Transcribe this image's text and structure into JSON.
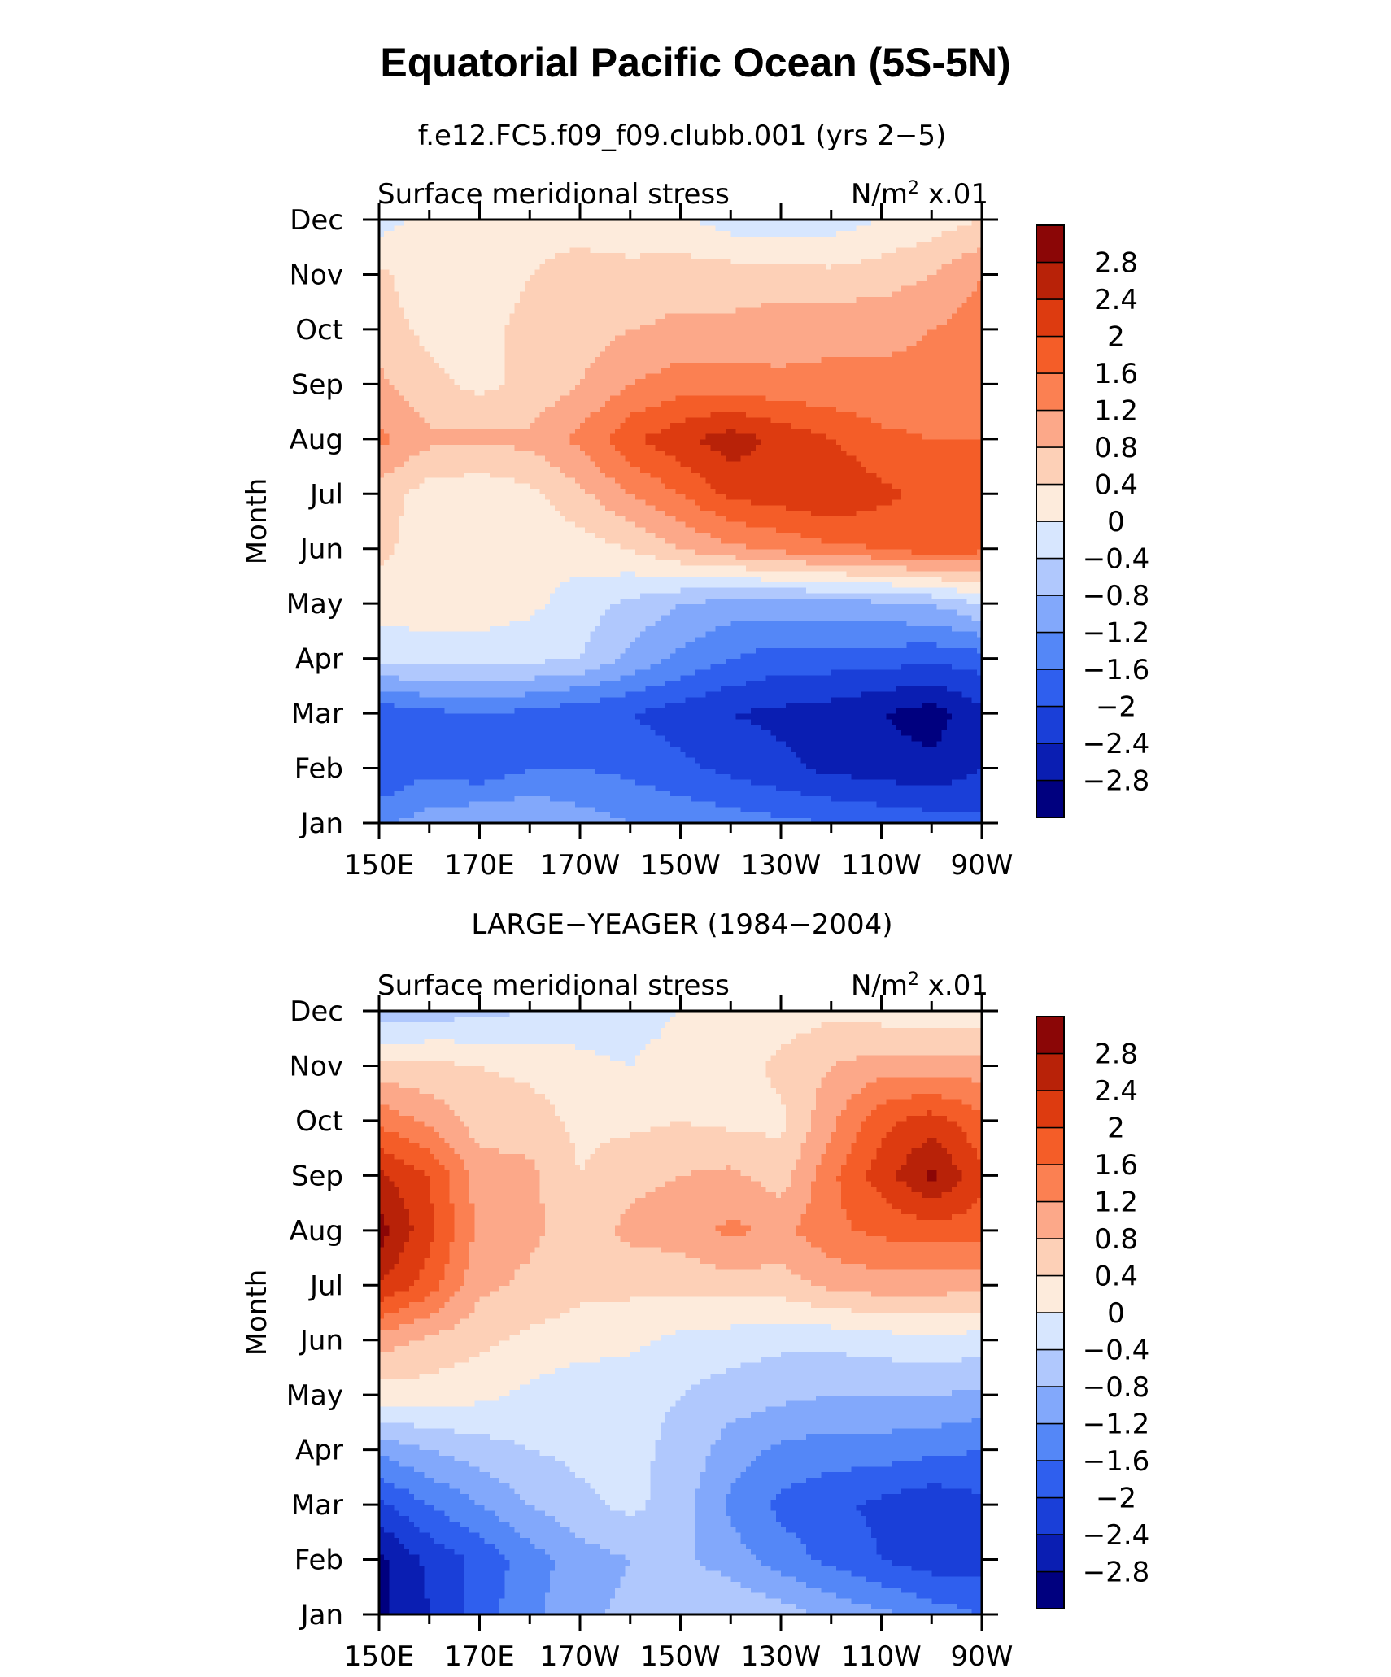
{
  "figure_title": "Equatorial Pacific Ocean (5S-5N)",
  "units_text": "N/m",
  "units_sup": "2",
  "units_scale": "x.01",
  "colors": [
    "#00007f",
    "#0a1eb2",
    "#1a3fd8",
    "#2f5fee",
    "#5487f7",
    "#82a8fb",
    "#b0c8fd",
    "#d7e6fe",
    "#fdebdc",
    "#fdd0b7",
    "#fca889",
    "#fb8052",
    "#f45d28",
    "#dd3b10",
    "#b82208",
    "#8b0606"
  ],
  "chart_data": [
    {
      "type": "heatmap",
      "title": "f.e12.FC5.f09_f09.clubb.001 (yrs 2−5)",
      "variable": "Surface meridional stress",
      "units": "N/m² x.01",
      "xlabel": "",
      "ylabel": "Month",
      "x": [
        150,
        160,
        170,
        180,
        190,
        200,
        210,
        220,
        230,
        240,
        250,
        260,
        270
      ],
      "xtick_values": [
        150,
        170,
        190,
        210,
        230,
        250,
        270
      ],
      "xtick_labels": [
        "150E",
        "170E",
        "170W",
        "150W",
        "130W",
        "110W",
        "90W"
      ],
      "y": [
        1,
        2,
        3,
        4,
        5,
        6,
        7,
        8,
        9,
        10,
        11,
        12
      ],
      "ytick_labels": [
        "Jan",
        "Feb",
        "Mar",
        "Apr",
        "May",
        "Jun",
        "Jul",
        "Aug",
        "Sep",
        "Oct",
        "Nov",
        "Dec"
      ],
      "levels": [
        -2.8,
        -2.4,
        -2,
        -1.6,
        -1.2,
        -0.8,
        -0.4,
        0,
        0.4,
        0.8,
        1.2,
        1.6,
        2,
        2.4,
        2.8
      ],
      "colorbar_labels": [
        "2.8",
        "2.4",
        "2",
        "1.6",
        "1.2",
        "0.8",
        "0.4",
        "0",
        "−0.4",
        "−0.8",
        "−1.2",
        "−1.6",
        "−2",
        "−2.4",
        "−2.8"
      ],
      "z": [
        [
          -1.3,
          -1.0,
          -0.8,
          -0.8,
          -1.0,
          -1.2,
          -1.3,
          -1.4,
          -1.5,
          -1.6,
          -1.7,
          -1.8,
          -1.9
        ],
        [
          -2.0,
          -1.7,
          -1.9,
          -1.6,
          -1.6,
          -1.7,
          -1.9,
          -2.1,
          -2.3,
          -2.5,
          -2.6,
          -2.7,
          -2.4
        ],
        [
          -1.9,
          -1.7,
          -1.6,
          -1.7,
          -1.9,
          -2.0,
          -2.2,
          -2.4,
          -2.5,
          -2.6,
          -2.8,
          -3.0,
          -2.5
        ],
        [
          -0.3,
          -0.2,
          -0.2,
          -0.3,
          -0.4,
          -0.9,
          -1.3,
          -1.6,
          -1.8,
          -1.8,
          -1.8,
          -1.9,
          -1.8
        ],
        [
          0.2,
          0.2,
          0.2,
          0.1,
          -0.2,
          -0.5,
          -0.8,
          -1.0,
          -1.0,
          -1.0,
          -0.9,
          -0.8,
          -0.4
        ],
        [
          0.5,
          0.2,
          0.1,
          0.1,
          0.2,
          0.4,
          0.8,
          1.1,
          1.3,
          1.5,
          1.6,
          1.8,
          1.7
        ],
        [
          0.6,
          0.2,
          0.1,
          0.3,
          0.7,
          1.2,
          1.6,
          2.1,
          2.2,
          2.4,
          2.1,
          1.9,
          1.7
        ],
        [
          1.3,
          0.9,
          0.9,
          0.9,
          1.3,
          1.9,
          2.3,
          2.6,
          2.3,
          2.0,
          1.7,
          1.6,
          1.6
        ],
        [
          0.9,
          0.5,
          0.3,
          0.5,
          0.8,
          1.2,
          1.4,
          1.4,
          1.3,
          1.3,
          1.3,
          1.3,
          1.5
        ],
        [
          0.6,
          0.3,
          0.3,
          0.5,
          0.6,
          0.8,
          0.9,
          0.9,
          1.0,
          1.1,
          1.1,
          1.2,
          1.4
        ],
        [
          0.5,
          0.1,
          0.2,
          0.4,
          0.5,
          0.5,
          0.6,
          0.6,
          0.6,
          0.5,
          0.6,
          0.8,
          1.2
        ],
        [
          -0.2,
          0.2,
          0.3,
          0.3,
          0.3,
          0.2,
          0.1,
          -0.2,
          -0.2,
          -0.2,
          0.0,
          0.2,
          0.4
        ]
      ]
    },
    {
      "type": "heatmap",
      "title": "LARGE−YEAGER (1984−2004)",
      "variable": "Surface meridional stress",
      "units": "N/m² x.01",
      "xlabel": "",
      "ylabel": "Month",
      "x": [
        150,
        160,
        170,
        180,
        190,
        200,
        210,
        220,
        230,
        240,
        250,
        260,
        270
      ],
      "xtick_values": [
        150,
        170,
        190,
        210,
        230,
        250,
        270
      ],
      "xtick_labels": [
        "150E",
        "170E",
        "170W",
        "150W",
        "130W",
        "110W",
        "90W"
      ],
      "y": [
        1,
        2,
        3,
        4,
        5,
        6,
        7,
        8,
        9,
        10,
        11,
        12
      ],
      "ytick_labels": [
        "Jan",
        "Feb",
        "Mar",
        "Apr",
        "May",
        "Jun",
        "Jul",
        "Aug",
        "Sep",
        "Oct",
        "Nov",
        "Dec"
      ],
      "levels": [
        -2.8,
        -2.4,
        -2,
        -1.6,
        -1.2,
        -0.8,
        -0.4,
        0,
        0.4,
        0.8,
        1.2,
        1.6,
        2,
        2.4,
        2.8
      ],
      "colorbar_labels": [
        "2.8",
        "2.4",
        "2",
        "1.6",
        "1.2",
        "0.8",
        "0.4",
        "0",
        "−0.4",
        "−0.8",
        "−1.2",
        "−1.6",
        "−2",
        "−2.4",
        "−2.8"
      ],
      "z": [
        [
          -2.9,
          -2.4,
          -1.8,
          -1.3,
          -0.9,
          -0.7,
          -0.5,
          -0.4,
          -0.6,
          -0.9,
          -1.1,
          -1.4,
          -1.6
        ],
        [
          -2.9,
          -2.3,
          -1.9,
          -1.4,
          -1.0,
          -0.8,
          -0.7,
          -1.0,
          -1.4,
          -1.7,
          -2.0,
          -2.2,
          -2.2
        ],
        [
          -2.1,
          -1.6,
          -1.2,
          -0.8,
          -0.5,
          -0.3,
          -0.6,
          -1.3,
          -1.7,
          -1.9,
          -2.1,
          -2.3,
          -2.1
        ],
        [
          -1.1,
          -0.8,
          -0.6,
          -0.4,
          -0.3,
          -0.3,
          -0.5,
          -1.0,
          -1.3,
          -1.4,
          -1.4,
          -1.5,
          -1.6
        ],
        [
          0.2,
          0.2,
          0.1,
          -0.1,
          -0.3,
          -0.3,
          -0.4,
          -0.6,
          -0.7,
          -0.8,
          -0.8,
          -0.8,
          -0.9
        ],
        [
          1.0,
          0.7,
          0.5,
          0.3,
          0.2,
          0.1,
          -0.1,
          -0.2,
          -0.3,
          -0.3,
          -0.2,
          -0.1,
          -0.2
        ],
        [
          2.4,
          1.8,
          0.9,
          0.7,
          0.5,
          0.5,
          0.5,
          0.6,
          0.6,
          0.9,
          1.0,
          1.0,
          0.9
        ],
        [
          3.0,
          2.1,
          1.1,
          0.9,
          0.6,
          0.9,
          1.0,
          1.3,
          1.1,
          1.5,
          1.7,
          1.8,
          1.8
        ],
        [
          2.5,
          2.0,
          1.0,
          0.9,
          0.4,
          0.7,
          0.8,
          0.9,
          0.6,
          1.5,
          2.2,
          2.9,
          2.1
        ],
        [
          1.5,
          1.1,
          0.6,
          0.6,
          0.3,
          0.3,
          0.4,
          0.3,
          0.3,
          1.1,
          1.9,
          2.2,
          1.7
        ],
        [
          0.5,
          0.5,
          0.4,
          0.3,
          0.1,
          0.0,
          0.2,
          0.2,
          0.5,
          0.8,
          1.0,
          1.0,
          1.0
        ],
        [
          -0.7,
          -0.6,
          -0.5,
          -0.4,
          -0.2,
          -0.2,
          0.0,
          0.2,
          0.2,
          0.3,
          0.2,
          0.1,
          0.1
        ]
      ]
    }
  ]
}
